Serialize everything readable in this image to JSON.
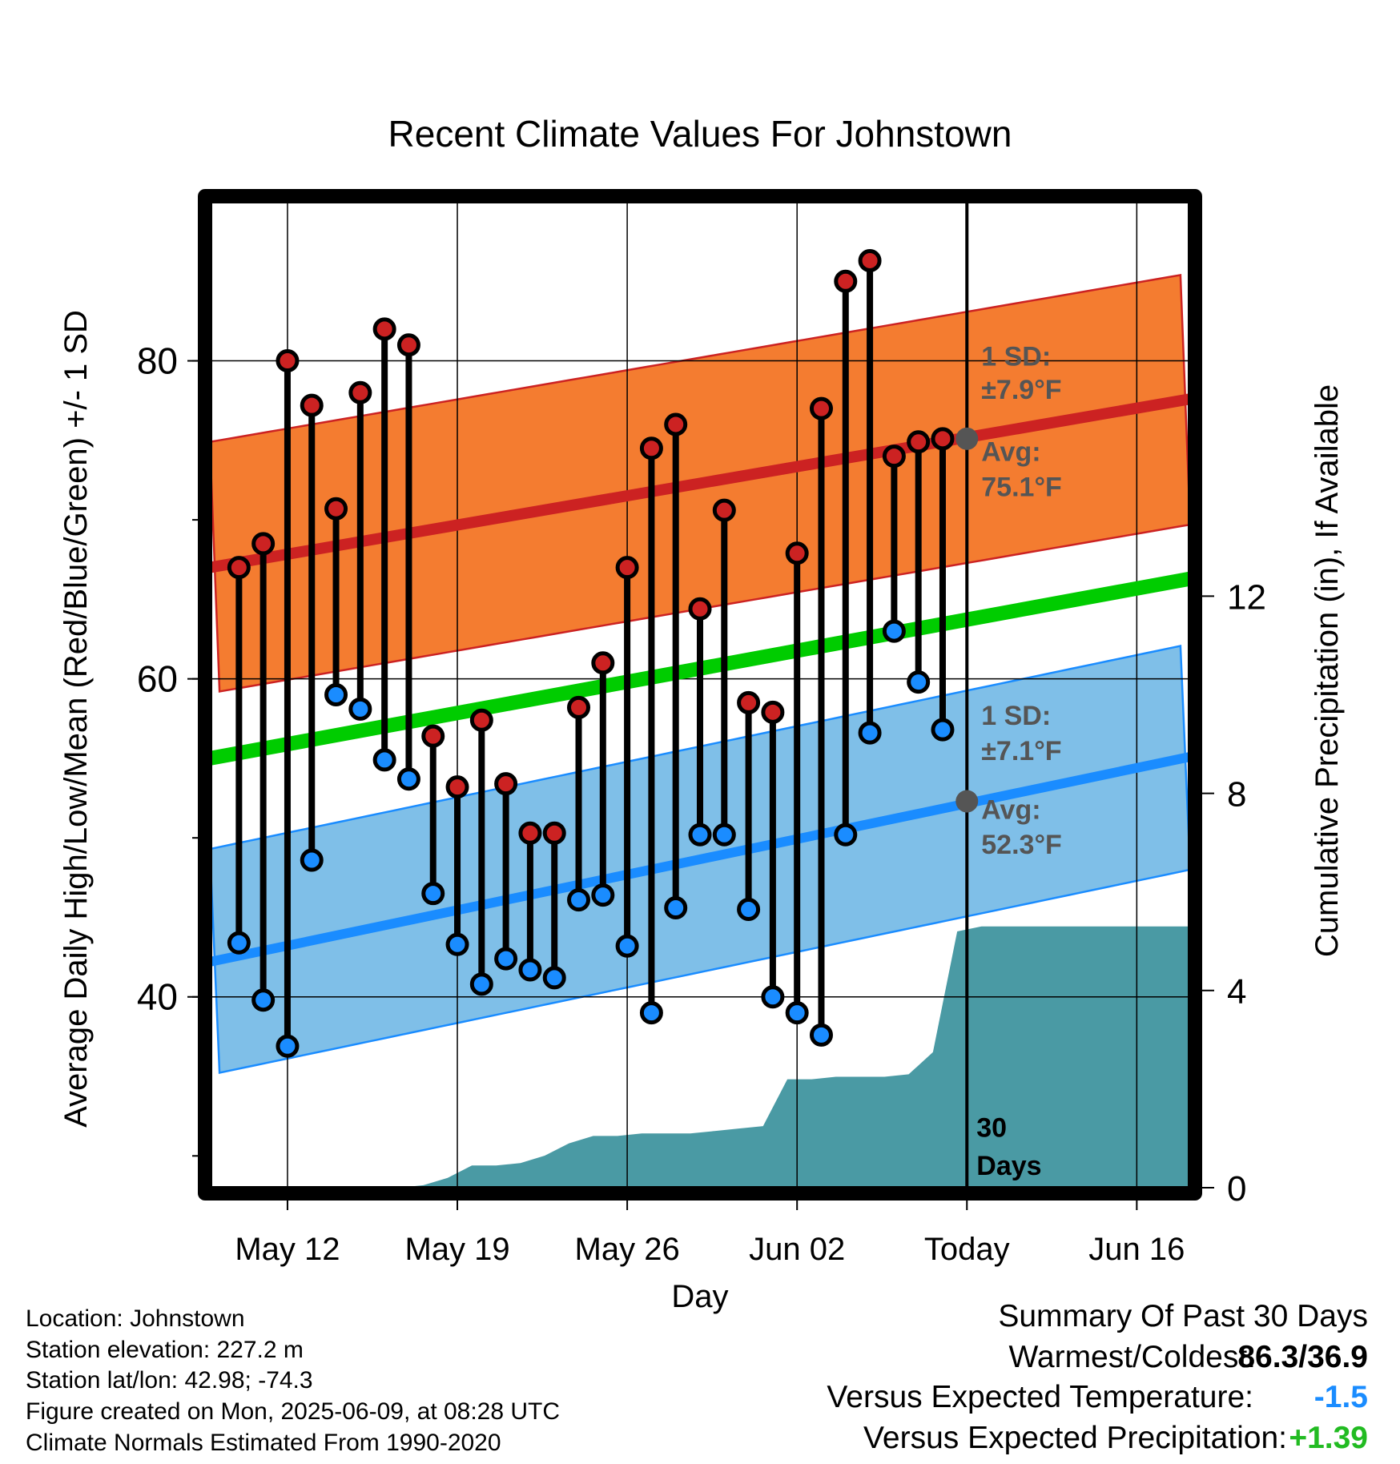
{
  "chart_data": {
    "type": "line",
    "title": "Recent Climate Values For Johnstown",
    "xlabel": "Day",
    "ylabel": "Average Daily High/Low/Mean (Red/Blue/Green) +/- 1 SD",
    "y2label": "Cumulative Precipitation (in), If Available",
    "ylim": [
      28,
      90
    ],
    "y2lim": [
      0,
      20
    ],
    "yticks": [
      "40",
      "60",
      "80"
    ],
    "y2ticks": [
      "0",
      "4",
      "8",
      "12"
    ],
    "xlim": [
      -3.2,
      37.2
    ],
    "xticks": [
      {
        "day": 0,
        "label": "May 12"
      },
      {
        "day": 7,
        "label": "May 19"
      },
      {
        "day": 14,
        "label": "May 26"
      },
      {
        "day": 21,
        "label": "Jun 02"
      },
      {
        "day": 28,
        "label": "Today"
      },
      {
        "day": 35,
        "label": "Jun 16"
      }
    ],
    "days": [
      -2,
      -1,
      0,
      1,
      2,
      3,
      4,
      5,
      6,
      7,
      8,
      9,
      10,
      11,
      12,
      13,
      14,
      15,
      16,
      17,
      18,
      19,
      20,
      21,
      22,
      23,
      24,
      25,
      26,
      27
    ],
    "highs": [
      67.0,
      68.5,
      80.0,
      77.2,
      70.7,
      78.0,
      82.0,
      81.0,
      56.4,
      53.2,
      57.4,
      53.4,
      50.3,
      50.3,
      58.2,
      61.0,
      67.0,
      74.5,
      76.0,
      64.4,
      70.6,
      58.5,
      57.9,
      67.9,
      77.0,
      85.0,
      86.3,
      74.0,
      74.9,
      75.1
    ],
    "lows": [
      43.4,
      39.8,
      36.9,
      48.6,
      59.0,
      58.1,
      54.9,
      53.7,
      46.5,
      43.3,
      40.8,
      42.4,
      41.7,
      41.2,
      46.1,
      46.4,
      43.2,
      39.0,
      45.6,
      50.2,
      50.2,
      45.5,
      40.0,
      39.0,
      37.6,
      50.2,
      56.6,
      63.0,
      59.8,
      56.8
    ],
    "normals": {
      "high_mean": {
        "start": 67.0,
        "end": 77.6
      },
      "high_sd": 7.9,
      "low_mean": {
        "start": 42.2,
        "end": 55.1
      },
      "low_sd": 7.1,
      "mean": {
        "start": 55.0,
        "end": 66.3
      }
    },
    "today_marker": {
      "day": 28,
      "label_line1": "30",
      "label_line2": "Days",
      "high_avg": 75.1,
      "low_avg": 52.3
    },
    "annotations": {
      "high_sd_line1": "1 SD:",
      "high_sd_line2": "±7.9°F",
      "high_avg_line1": "Avg:",
      "high_avg_line2": "75.1°F",
      "low_sd_line1": "1 SD:",
      "low_sd_line2": "±7.1°F",
      "low_avg_line1": "Avg:",
      "low_avg_line2": "52.3°F"
    },
    "precip_cumulative": {
      "days": [
        -3.2,
        4.6,
        5.6,
        6.6,
        7.6,
        8.6,
        9.6,
        10.6,
        11.6,
        12.6,
        13.6,
        14.6,
        15.6,
        16.6,
        17.6,
        18.6,
        19.6,
        20.6,
        21.6,
        22.6,
        23.6,
        24.6,
        25.6,
        26.6,
        27.6,
        28.6,
        37.2
      ],
      "values": [
        0.0,
        0.0,
        0.05,
        0.2,
        0.45,
        0.45,
        0.5,
        0.65,
        0.9,
        1.05,
        1.05,
        1.1,
        1.1,
        1.1,
        1.15,
        1.2,
        1.25,
        2.2,
        2.2,
        2.25,
        2.25,
        2.25,
        2.3,
        2.75,
        5.2,
        5.3,
        5.3
      ]
    },
    "colors": {
      "high_band": "#f47c30",
      "high_line": "#cc2222",
      "low_band": "#7fbfe8",
      "low_line": "#1a8cff",
      "mean_line": "#00cc00",
      "precip": "#4a9aa4",
      "high_dot": "#cc2222",
      "low_dot": "#1a8cff",
      "annotation": "#555555"
    },
    "grid": true
  },
  "location": "Location: Johnstown",
  "elevation": "Station elevation: 227.2 m",
  "latlon": "Station lat/lon: 42.98; -74.3",
  "created": "Figure created on Mon, 2025-06-09, at 08:28 UTC",
  "normals_note": "Climate Normals Estimated From 1990-2020",
  "summary": {
    "title": "Summary Of Past 30 Days",
    "warm_cold_label": "Warmest/Coldest:",
    "warm_cold_value": "86.3/36.9",
    "temp_label": "Versus Expected Temperature:",
    "temp_value": "-1.5",
    "temp_color": "#1a8cff",
    "precip_label": "Versus Expected Precipitation:",
    "precip_value": "+1.39",
    "precip_color": "#22bb22"
  }
}
